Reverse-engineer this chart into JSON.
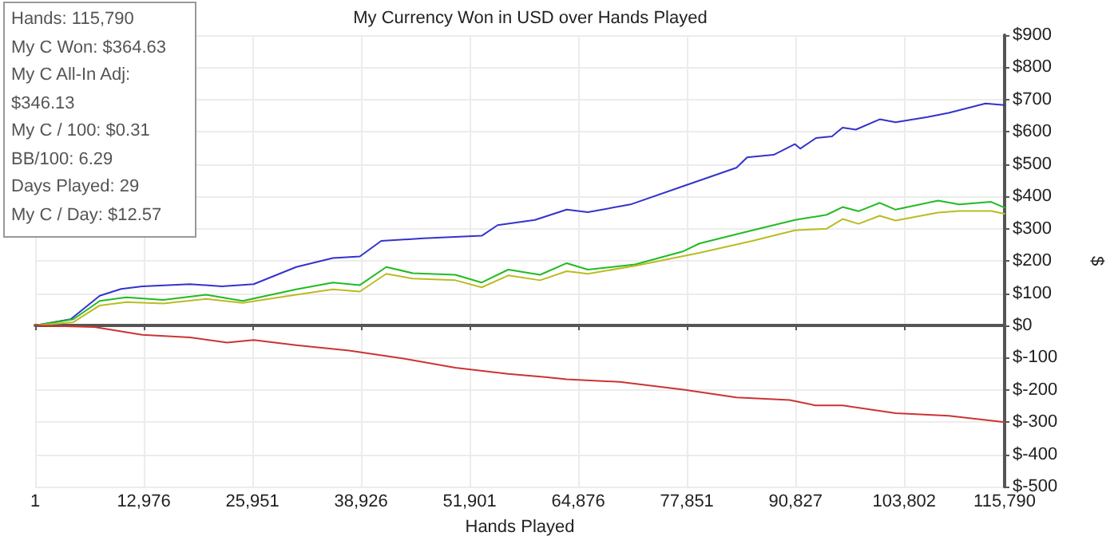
{
  "chart_data": {
    "type": "line",
    "title": "My Currency Won in USD over Hands Played",
    "xlabel": "Hands Played",
    "ylabel": "$",
    "annotations": [
      "Hands: 115,790",
      "My C Won: $364.63",
      "My C All-In Adj: $346.13",
      "My C / 100: $0.31",
      "BB/100: 6.29",
      "Days Played: 29",
      "My C / Day: $12.57"
    ],
    "series": [
      {
        "color": "#3333cc",
        "x": [
          1,
          4240,
          7720,
          10270,
          12790,
          18500,
          22300,
          26100,
          31180,
          35560,
          38780,
          41340,
          46380,
          53340,
          55240,
          59690,
          63490,
          66020,
          71100,
          77440,
          83760,
          85040,
          88210,
          90750,
          91380,
          93270,
          95170,
          96440,
          98020,
          100870,
          102770,
          106570,
          109120,
          113500,
          115790
        ],
        "values": [
          0,
          19,
          92,
          113,
          121,
          128,
          121,
          128,
          181,
          209,
          214,
          262,
          270,
          278,
          311,
          327,
          359,
          351,
          375,
          432,
          489,
          521,
          529,
          562,
          548,
          581,
          586,
          613,
          607,
          639,
          630,
          646,
          659,
          688,
          683
        ]
      },
      {
        "color": "#22bb22",
        "x": [
          1,
          4560,
          7720,
          10900,
          15290,
          20420,
          24790,
          31180,
          35560,
          38780,
          41940,
          45110,
          50190,
          53340,
          56510,
          60310,
          63490,
          66020,
          71670,
          77440,
          79340,
          85660,
          90750,
          94550,
          96440,
          98340,
          100870,
          102770,
          107840,
          110370,
          114170,
          115790
        ],
        "values": [
          0,
          19,
          76,
          87,
          79,
          95,
          76,
          112,
          133,
          125,
          181,
          162,
          157,
          133,
          173,
          157,
          193,
          173,
          189,
          230,
          254,
          295,
          327,
          343,
          367,
          354,
          380,
          359,
          387,
          375,
          383,
          365
        ]
      },
      {
        "color": "#bbbb22",
        "x": [
          1,
          4560,
          7720,
          10900,
          15290,
          20420,
          24790,
          31180,
          35560,
          38780,
          41940,
          45110,
          50190,
          53340,
          56510,
          60310,
          63490,
          66020,
          71670,
          77440,
          79340,
          85660,
          90750,
          94550,
          96440,
          98340,
          100870,
          102770,
          107840,
          110370,
          114170,
          115790
        ],
        "values": [
          0,
          10,
          62,
          72,
          68,
          82,
          70,
          95,
          112,
          105,
          160,
          145,
          140,
          118,
          155,
          140,
          168,
          160,
          185,
          215,
          225,
          262,
          295,
          300,
          330,
          315,
          340,
          325,
          350,
          355,
          355,
          346
        ]
      },
      {
        "color": "#cc3333",
        "x": [
          1,
          7090,
          12790,
          18500,
          22930,
          26100,
          31180,
          37500,
          43840,
          50190,
          56510,
          60940,
          63490,
          69840,
          77440,
          83760,
          90120,
          93210,
          96440,
          102770,
          109120,
          115790
        ],
        "values": [
          0,
          -5,
          -29,
          -37,
          -53,
          -45,
          -61,
          -78,
          -102,
          -131,
          -150,
          -160,
          -167,
          -175,
          -199,
          -223,
          -231,
          -248,
          -248,
          -272,
          -280,
          -300
        ]
      }
    ],
    "xlim": [
      1,
      115790
    ],
    "xticks": [
      1,
      {
        "value": 12976,
        "label": "12,976"
      },
      {
        "value": 25951,
        "label": "25,951"
      },
      {
        "value": 38926,
        "label": "38,926"
      },
      {
        "value": 51901,
        "label": "51,901"
      },
      {
        "value": 64876,
        "label": "64,876"
      },
      {
        "value": 77851,
        "label": "77,851"
      },
      {
        "value": 90827,
        "label": "90,827"
      },
      {
        "value": 103802,
        "label": "103,802"
      },
      {
        "value": 115790,
        "label": "115,790"
      }
    ],
    "ylim": [
      -500,
      900
    ],
    "yticks": [
      {
        "value": -500,
        "label": "$-500"
      },
      {
        "value": -400,
        "label": "$-400"
      },
      {
        "value": -300,
        "label": "$-300"
      },
      {
        "value": -200,
        "label": "$-200"
      },
      {
        "value": -100,
        "label": "$-100"
      },
      {
        "value": 0,
        "label": "$0"
      },
      {
        "value": 100,
        "label": "$100"
      },
      {
        "value": 200,
        "label": "$200"
      },
      {
        "value": 300,
        "label": "$300"
      },
      {
        "value": 400,
        "label": "$400"
      },
      {
        "value": 500,
        "label": "$500"
      },
      {
        "value": 600,
        "label": "$600"
      },
      {
        "value": 700,
        "label": "$700"
      },
      {
        "value": 800,
        "label": "$800"
      },
      {
        "value": 900,
        "label": "$900"
      }
    ],
    "ref_lines": [
      {
        "axis": "y",
        "value": 0,
        "color": "#555555"
      }
    ],
    "grid": true,
    "marker": "none",
    "line_style": "solid"
  }
}
